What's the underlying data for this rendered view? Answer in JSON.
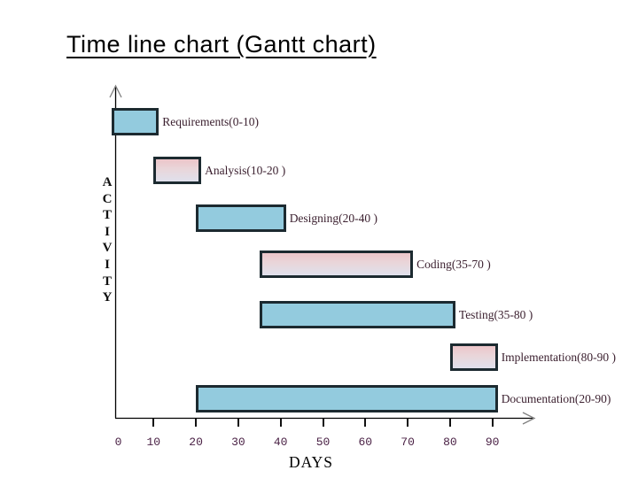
{
  "title": "Time line chart (Gantt chart)",
  "colors": {
    "background": "#ffffff",
    "title_text": "#000000",
    "axis": "#000000",
    "arrowhead": "#808080",
    "bar_blue": "#93cbde",
    "bar_pink_top": "#ecc5c9",
    "bar_pink_bottom": "#dfe0ec",
    "bar_border": "#1c2a30",
    "bar_label_text": "#3c2130",
    "tick_label_text": "#4a2145",
    "axis_title_text": "#000000"
  },
  "chart_data": {
    "type": "bar",
    "subtype": "gantt",
    "title": "Time line chart (Gantt chart)",
    "xlabel": "DAYS",
    "ylabel": "ACTIVITY",
    "xlim": [
      0,
      98
    ],
    "x_ticks": [
      0,
      10,
      20,
      30,
      40,
      50,
      60,
      70,
      80,
      90
    ],
    "grid": false,
    "legend": "none",
    "tasks": [
      {
        "name": "Requirements",
        "start": 0,
        "end": 10,
        "label": "Requirements(0-10)",
        "style": "blue"
      },
      {
        "name": "Analysis",
        "start": 10,
        "end": 20,
        "label": "Analysis(10-20 )",
        "style": "pink"
      },
      {
        "name": "Designing",
        "start": 20,
        "end": 40,
        "label": "Designing(20-40 )",
        "style": "blue"
      },
      {
        "name": "Coding",
        "start": 35,
        "end": 70,
        "label": "Coding(35-70 )",
        "style": "pink"
      },
      {
        "name": "Testing",
        "start": 35,
        "end": 80,
        "label": "Testing(35-80 )",
        "style": "blue"
      },
      {
        "name": "Implementation",
        "start": 80,
        "end": 90,
        "label": "Implementation(80-90 )",
        "style": "pink"
      },
      {
        "name": "Documentation",
        "start": 20,
        "end": 90,
        "label": "Documentation(20-90)",
        "style": "blue"
      }
    ]
  }
}
